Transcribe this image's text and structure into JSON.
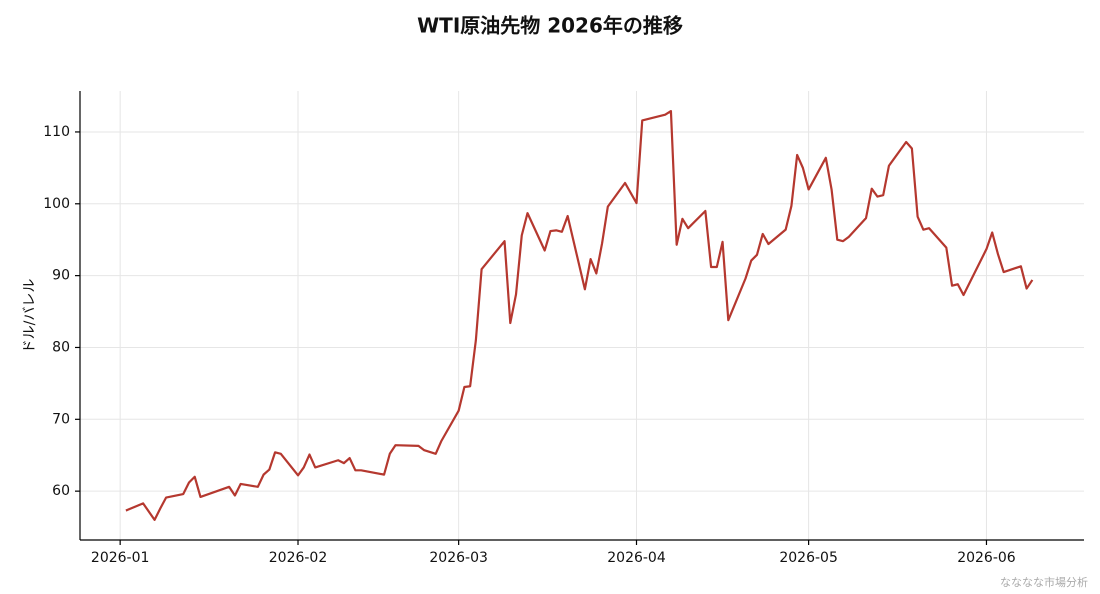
{
  "chart_data": {
    "type": "line",
    "title": "WTI原油先物 2026年の推移",
    "ylabel": "ドル/バレル",
    "credit": "なななな市場分析",
    "color": "#b5382f",
    "grid": true,
    "xlim": [
      -7,
      168
    ],
    "xticks": [
      {
        "value": 0,
        "label": "2026-01"
      },
      {
        "value": 31,
        "label": "2026-02"
      },
      {
        "value": 59,
        "label": "2026-03"
      },
      {
        "value": 90,
        "label": "2026-04"
      },
      {
        "value": 120,
        "label": "2026-05"
      },
      {
        "value": 151,
        "label": "2026-06"
      }
    ],
    "ylim": [
      53.2,
      115.7
    ],
    "yticks": [
      60,
      70,
      80,
      90,
      100,
      110
    ],
    "x": [
      1,
      4,
      6,
      7,
      8,
      11,
      12,
      13,
      14,
      19,
      20,
      21,
      24,
      25,
      26,
      27,
      28,
      31,
      32,
      33,
      34,
      38,
      39,
      40,
      41,
      42,
      46,
      47,
      48,
      52,
      53,
      55,
      56,
      59,
      60,
      61,
      62,
      63,
      67,
      68,
      69,
      70,
      71,
      74,
      75,
      76,
      77,
      78,
      81,
      82,
      83,
      84,
      85,
      88,
      90,
      91,
      95,
      96,
      97,
      98,
      99,
      102,
      103,
      104,
      105,
      106,
      109,
      110,
      111,
      112,
      113,
      116,
      117,
      118,
      119,
      120,
      123,
      124,
      125,
      126,
      127,
      130,
      131,
      132,
      133,
      134,
      137,
      138,
      139,
      140,
      141,
      144,
      145,
      146,
      147,
      151,
      152,
      153,
      154,
      157,
      158,
      159
    ],
    "values": [
      57.3,
      58.3,
      56.0,
      57.6,
      59.1,
      59.6,
      61.2,
      62.0,
      59.2,
      60.6,
      59.4,
      61.0,
      60.6,
      62.3,
      63.0,
      65.4,
      65.2,
      62.2,
      63.3,
      65.1,
      63.3,
      64.3,
      63.9,
      64.6,
      62.9,
      62.9,
      62.3,
      65.2,
      66.4,
      66.3,
      65.7,
      65.2,
      67.0,
      71.2,
      74.5,
      74.6,
      81.0,
      90.9,
      94.8,
      83.4,
      87.4,
      95.6,
      98.7,
      93.5,
      96.2,
      96.3,
      96.1,
      98.3,
      88.1,
      92.3,
      90.3,
      94.5,
      99.6,
      102.9,
      100.1,
      111.6,
      112.4,
      112.9,
      94.3,
      97.9,
      96.6,
      99.0,
      91.2,
      91.2,
      94.7,
      83.8,
      89.6,
      92.1,
      92.9,
      95.8,
      94.4,
      96.4,
      99.7,
      106.8,
      105.0,
      102.0,
      106.4,
      102.0,
      95.0,
      94.8,
      95.4,
      98.0,
      102.1,
      101.0,
      101.2,
      105.3,
      108.6,
      107.7,
      98.2,
      96.4,
      96.6,
      93.9,
      88.6,
      88.8,
      87.3,
      93.7,
      96.0,
      93.0,
      90.5,
      91.3,
      88.2,
      89.4
    ]
  }
}
